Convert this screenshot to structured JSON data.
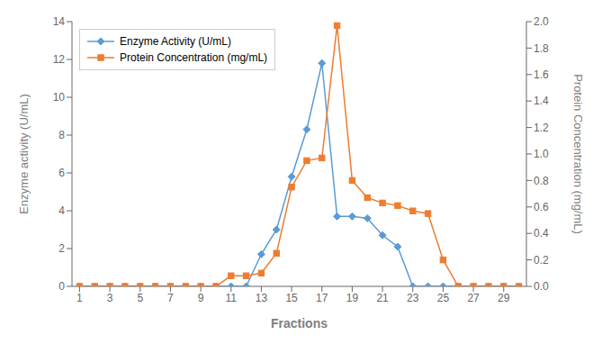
{
  "chart_data": {
    "type": "line",
    "xlabel": "Fractions",
    "ylabel": "Enzyme activity (U/mL)",
    "y2label": "Protein Concentration (mg/mL)",
    "x": [
      1,
      2,
      3,
      4,
      5,
      6,
      7,
      8,
      9,
      10,
      11,
      12,
      13,
      14,
      15,
      16,
      17,
      18,
      19,
      20,
      21,
      22,
      23,
      24,
      25,
      26,
      27,
      28,
      29,
      30
    ],
    "xlim": [
      0.5,
      30.5
    ],
    "xticks": [
      1,
      3,
      5,
      7,
      9,
      11,
      13,
      15,
      17,
      19,
      21,
      23,
      25,
      27,
      29
    ],
    "ylim": [
      0,
      14
    ],
    "yticks": [
      0,
      2,
      4,
      6,
      8,
      10,
      12,
      14
    ],
    "y2lim": [
      0,
      2
    ],
    "y2ticks": [
      {
        "value": 0,
        "label": "0.0"
      },
      0.2,
      0.4,
      0.6,
      0.8,
      {
        "value": 1.0,
        "label": "1.0"
      },
      1.2,
      1.4,
      1.6,
      1.8,
      {
        "value": 2.0,
        "label": "2.0"
      }
    ],
    "legend": "upper left",
    "grid": false,
    "series": [
      {
        "name": "Enzyme Activity (U/mL)",
        "color": "#5B9BD5",
        "marker": "diamond",
        "values": [
          0,
          0,
          0,
          0,
          0,
          0,
          0,
          0,
          0,
          0,
          0,
          0,
          1.7,
          3.0,
          5.8,
          8.3,
          11.8,
          3.7,
          3.7,
          3.6,
          2.7,
          2.1,
          0,
          0,
          0,
          0,
          0,
          0,
          0,
          0
        ]
      },
      {
        "name": "Protein Concentration (mg/mL)",
        "color": "#ED7D31",
        "marker": "square",
        "axis": "y2",
        "values": [
          0,
          0,
          0,
          0,
          0,
          0,
          0,
          0,
          0,
          0,
          0.08,
          0.08,
          0.1,
          0.25,
          0.75,
          0.95,
          0.97,
          1.97,
          0.8,
          0.67,
          0.63,
          0.61,
          0.57,
          0.55,
          0.2,
          0,
          0,
          0,
          0,
          0
        ]
      }
    ]
  }
}
